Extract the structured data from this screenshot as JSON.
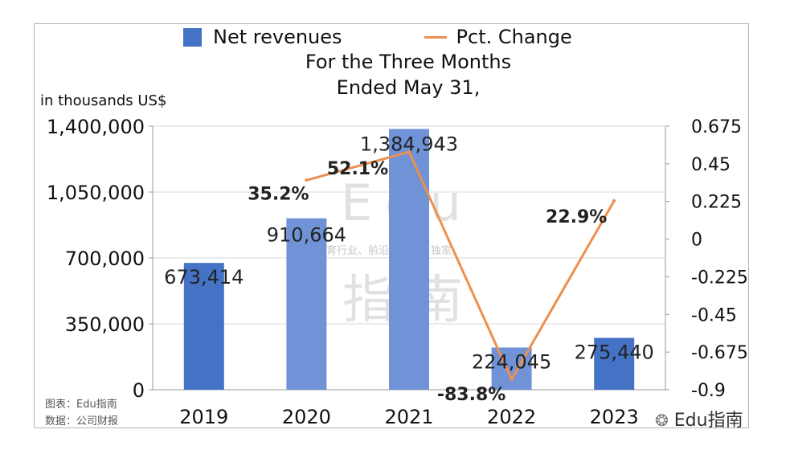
{
  "legend": {
    "bar_label": "Net revenues",
    "line_label": "Pct. Change"
  },
  "title_lines": [
    "For the Three Months",
    "Ended May 31,"
  ],
  "unit_label": "in thousands US$",
  "source": {
    "chart_credit": "图表：Edu指南",
    "data_credit": "数据：公司财报"
  },
  "watermark": {
    "latin": "Edu",
    "tagline": "教育行业、前沿、深度、独家",
    "cjk": "指南",
    "wechat_handle": "Edu指南"
  },
  "colors": {
    "bar": "#4472c4",
    "bar_light": "#6f93d6",
    "line": "#ed8f4f",
    "grid": "#d9d9d9"
  },
  "chart_data": {
    "type": "bar+line",
    "title": "For the Three Months Ended May 31,",
    "ylabel": "in thousands US$",
    "categories": [
      "2019",
      "2020",
      "2021",
      "2022",
      "2023"
    ],
    "left_axis": {
      "ylim": [
        0,
        1400000
      ],
      "ticks": [
        0,
        350000,
        700000,
        1050000,
        1400000
      ],
      "tick_labels": [
        "0",
        "350,000",
        "700,000",
        "1,050,000",
        "1,400,000"
      ]
    },
    "right_axis": {
      "ylim": [
        -0.9,
        0.675
      ],
      "ticks": [
        -0.9,
        -0.675,
        -0.45,
        -0.225,
        0,
        0.225,
        0.45,
        0.675
      ],
      "tick_labels": [
        "-0.9",
        "-0.675",
        "-0.45",
        "-0.225",
        "0",
        "0.225",
        "0.45",
        "0.675"
      ]
    },
    "series": [
      {
        "name": "Net revenues",
        "kind": "bar",
        "axis": "left",
        "values": [
          673414,
          910664,
          1384943,
          224045,
          275440
        ],
        "labels": [
          "673,414",
          "910,664",
          "1,384,943",
          "224,045",
          "275,440"
        ]
      },
      {
        "name": "Pct. Change",
        "kind": "line",
        "axis": "right",
        "values": [
          null,
          0.352,
          0.521,
          -0.838,
          0.229
        ],
        "labels": [
          null,
          "35.2%",
          "52.1%",
          "-83.8%",
          "22.9%"
        ]
      }
    ],
    "grid": true,
    "legend_position": "top"
  }
}
